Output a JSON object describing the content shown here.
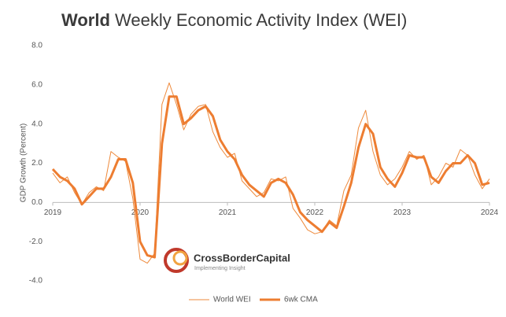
{
  "chart_data": {
    "type": "line",
    "title_bold": "World",
    "title": "Weekly Economic Activity Index  (WEI)",
    "y_label": "GDP Growth (Percent)",
    "annotations": [
      "CrossBorderCapital",
      "Implementing Insight"
    ],
    "x": [
      2019,
      2019.083,
      2019.167,
      2019.25,
      2019.333,
      2019.417,
      2019.5,
      2019.583,
      2019.667,
      2019.75,
      2019.833,
      2019.917,
      2020,
      2020.083,
      2020.167,
      2020.25,
      2020.333,
      2020.417,
      2020.5,
      2020.583,
      2020.667,
      2020.75,
      2020.833,
      2020.917,
      2021,
      2021.083,
      2021.167,
      2021.25,
      2021.333,
      2021.417,
      2021.5,
      2021.583,
      2021.667,
      2021.75,
      2021.833,
      2021.917,
      2022,
      2022.083,
      2022.167,
      2022.25,
      2022.333,
      2022.417,
      2022.5,
      2022.583,
      2022.667,
      2022.75,
      2022.833,
      2022.917,
      2023,
      2023.083,
      2023.167,
      2023.25,
      2023.333,
      2023.417,
      2023.5,
      2023.583,
      2023.667,
      2023.75,
      2023.833,
      2023.917,
      2024
    ],
    "series": [
      {
        "name": "World WEI",
        "color": "#ee8a3c",
        "width": 1,
        "values": [
          1.5,
          1.0,
          1.3,
          0.5,
          -0.1,
          0.5,
          0.8,
          0.6,
          2.6,
          2.3,
          2.1,
          0.2,
          -2.9,
          -3.1,
          -2.6,
          5.0,
          6.1,
          5.0,
          3.7,
          4.5,
          4.9,
          5.0,
          3.6,
          2.8,
          2.3,
          2.5,
          1.1,
          0.7,
          0.3,
          0.5,
          1.2,
          1.1,
          1.3,
          -0.3,
          -0.8,
          -1.4,
          -1.6,
          -1.5,
          -0.9,
          -1.2,
          0.6,
          1.4,
          3.8,
          4.7,
          2.6,
          1.4,
          0.9,
          1.2,
          1.8,
          2.6,
          2.2,
          2.4,
          0.9,
          1.3,
          2.0,
          1.8,
          2.7,
          2.4,
          1.4,
          0.7,
          1.2
        ]
      },
      {
        "name": "6wk CMA",
        "color": "#ed7d31",
        "width": 3,
        "values": [
          1.7,
          1.3,
          1.1,
          0.7,
          -0.1,
          0.3,
          0.7,
          0.7,
          1.3,
          2.2,
          2.2,
          1.0,
          -2.0,
          -2.7,
          -2.8,
          3.0,
          5.4,
          5.4,
          4.0,
          4.3,
          4.7,
          4.9,
          4.4,
          3.2,
          2.6,
          2.2,
          1.4,
          0.9,
          0.6,
          0.3,
          1.0,
          1.2,
          1.0,
          0.4,
          -0.5,
          -0.9,
          -1.2,
          -1.5,
          -1.0,
          -1.3,
          -0.2,
          1.0,
          2.8,
          4.0,
          3.5,
          1.8,
          1.2,
          0.8,
          1.5,
          2.4,
          2.3,
          2.3,
          1.3,
          1.0,
          1.6,
          2.0,
          2.0,
          2.4,
          2.0,
          0.9,
          1.0
        ]
      }
    ],
    "xlim": [
      2019,
      2024
    ],
    "xticks": [
      2019,
      2020,
      2021,
      2022,
      2023,
      2024
    ],
    "ylim": [
      -4,
      8
    ],
    "yticks": [
      {
        "value": -4,
        "label": "-4.0"
      },
      {
        "value": -2,
        "label": "-2.0"
      },
      {
        "value": 0,
        "label": "0.0"
      },
      {
        "value": 2,
        "label": "2.0"
      },
      {
        "value": 4,
        "label": "4.0"
      },
      {
        "value": 6,
        "label": "6.0"
      },
      {
        "value": 8,
        "label": "8.0"
      }
    ],
    "grid": false,
    "legend": "bottom"
  }
}
